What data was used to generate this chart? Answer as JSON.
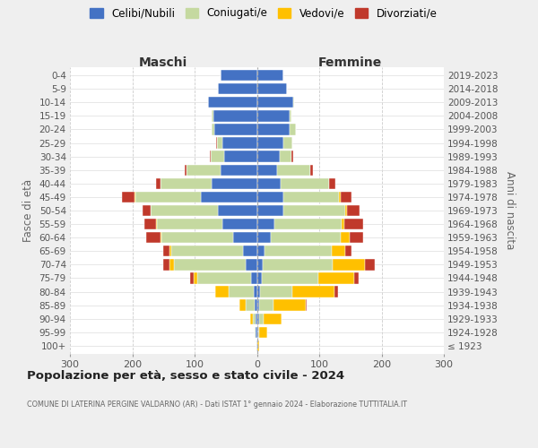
{
  "age_groups": [
    "100+",
    "95-99",
    "90-94",
    "85-89",
    "80-84",
    "75-79",
    "70-74",
    "65-69",
    "60-64",
    "55-59",
    "50-54",
    "45-49",
    "40-44",
    "35-39",
    "30-34",
    "25-29",
    "20-24",
    "15-19",
    "10-14",
    "5-9",
    "0-4"
  ],
  "birth_years": [
    "≤ 1923",
    "1924-1928",
    "1929-1933",
    "1934-1938",
    "1939-1943",
    "1944-1948",
    "1949-1953",
    "1954-1958",
    "1959-1963",
    "1964-1968",
    "1969-1973",
    "1974-1978",
    "1979-1983",
    "1984-1988",
    "1989-1993",
    "1994-1998",
    "1999-2003",
    "2004-2008",
    "2009-2013",
    "2014-2018",
    "2019-2023"
  ],
  "maschi": {
    "celibi": [
      1,
      2,
      2,
      3,
      5,
      10,
      18,
      22,
      38,
      55,
      62,
      90,
      72,
      58,
      52,
      56,
      68,
      70,
      78,
      63,
      58
    ],
    "coniugati": [
      0,
      1,
      5,
      15,
      40,
      85,
      115,
      115,
      115,
      105,
      108,
      105,
      82,
      55,
      22,
      8,
      5,
      2,
      0,
      0,
      0
    ],
    "vedovi": [
      0,
      1,
      4,
      10,
      22,
      6,
      8,
      3,
      2,
      2,
      1,
      1,
      0,
      0,
      0,
      0,
      0,
      0,
      0,
      0,
      0
    ],
    "divorziati": [
      0,
      0,
      0,
      0,
      0,
      6,
      9,
      10,
      22,
      18,
      12,
      20,
      8,
      3,
      2,
      1,
      0,
      0,
      0,
      0,
      0
    ]
  },
  "femmine": {
    "celibi": [
      0,
      2,
      3,
      4,
      5,
      8,
      10,
      12,
      22,
      28,
      42,
      42,
      38,
      33,
      36,
      42,
      52,
      52,
      58,
      48,
      43
    ],
    "coniugati": [
      0,
      2,
      8,
      22,
      52,
      90,
      112,
      108,
      112,
      108,
      100,
      90,
      78,
      52,
      20,
      15,
      10,
      3,
      1,
      0,
      0
    ],
    "vedovi": [
      3,
      12,
      28,
      52,
      68,
      58,
      52,
      22,
      15,
      5,
      3,
      2,
      0,
      0,
      0,
      0,
      0,
      0,
      0,
      0,
      0
    ],
    "divorziati": [
      0,
      0,
      0,
      2,
      5,
      8,
      15,
      10,
      22,
      30,
      20,
      18,
      10,
      5,
      2,
      0,
      0,
      0,
      0,
      0,
      0
    ]
  },
  "colors": {
    "celibi": "#4472C4",
    "coniugati": "#c5d9a0",
    "vedovi": "#ffc000",
    "divorziati": "#c0392b"
  },
  "legend_labels": [
    "Celibi/Nubili",
    "Coniugati/e",
    "Vedovi/e",
    "Divorziati/e"
  ],
  "title": "Popolazione per età, sesso e stato civile - 2024",
  "subtitle": "COMUNE DI LATERINA PERGINE VALDARNO (AR) - Dati ISTAT 1° gennaio 2024 - Elaborazione TUTTITALIA.IT",
  "ylabel_left": "Fasce di età",
  "ylabel_right": "Anni di nascita",
  "xlabel_left": "Maschi",
  "xlabel_right": "Femmine",
  "xlim": 300,
  "bg_color": "#efefef",
  "plot_bg_color": "#ffffff"
}
